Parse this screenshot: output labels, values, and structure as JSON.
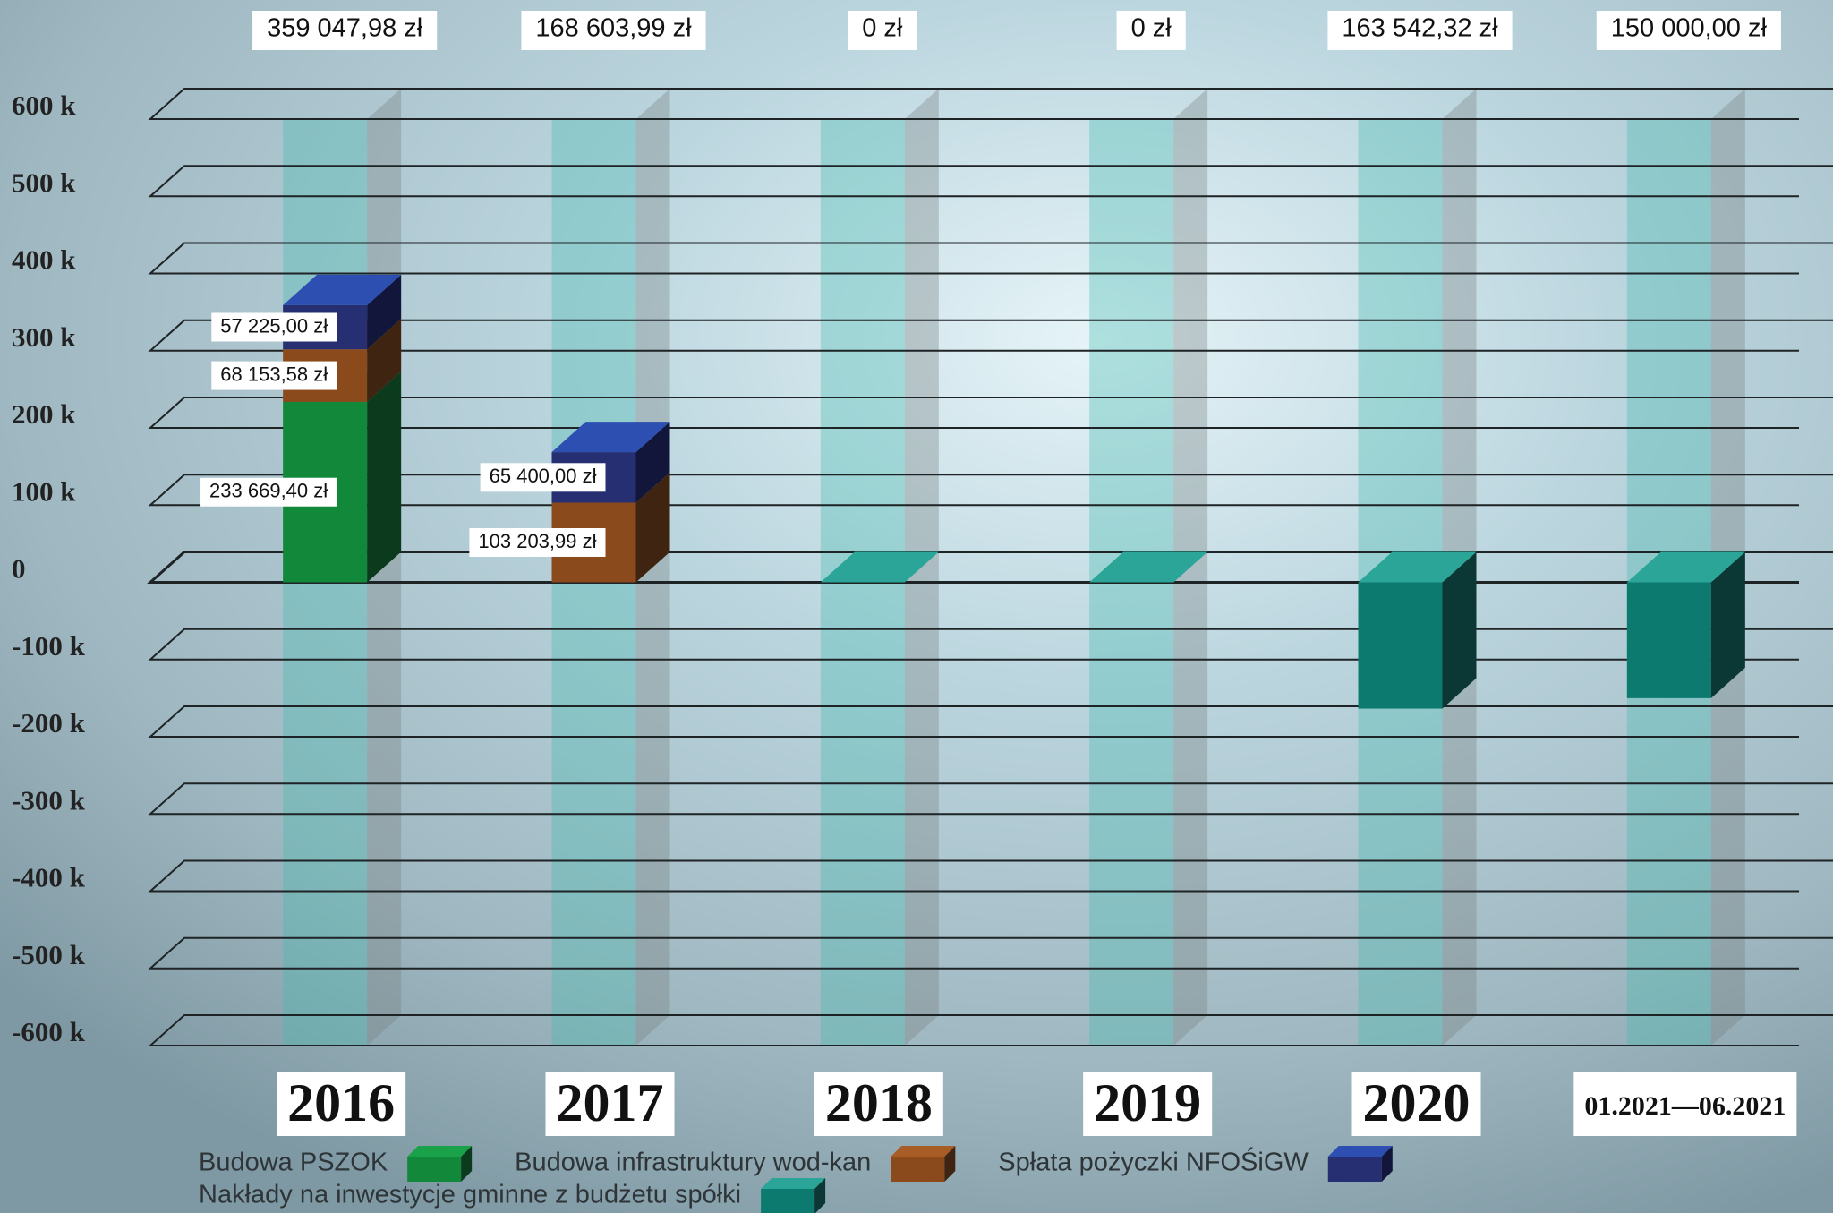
{
  "chart_data": {
    "type": "bar",
    "stacked": true,
    "categories": [
      "2016",
      "2017",
      "2018",
      "2019",
      "2020",
      "01.2021—06.2021"
    ],
    "total_labels": [
      "359 047,98 zł",
      "168 603,99 zł",
      "0 zł",
      "0 zł",
      "163 542,32 zł",
      "150 000,00 zł"
    ],
    "series": [
      {
        "name": "Budowa PSZOK",
        "color": "#11883a",
        "side_color": "#0b3a1d",
        "top_color": "#1aa24a",
        "values": [
          233669.4,
          null,
          null,
          null,
          null,
          null
        ],
        "value_labels": [
          "233 669,40 zł",
          null,
          null,
          null,
          null,
          null
        ]
      },
      {
        "name": "Budowa infrastruktury wod-kan",
        "color": "#8a4a1c",
        "side_color": "#3e2411",
        "top_color": "#a85c26",
        "values": [
          68153.58,
          103203.99,
          null,
          null,
          null,
          null
        ],
        "value_labels": [
          "68 153,58 zł",
          "103 203,99 zł",
          null,
          null,
          null,
          null
        ]
      },
      {
        "name": "Spłata pożyczki NFOŚiGW",
        "color": "#252f72",
        "side_color": "#11163a",
        "top_color": "#2d4fb2",
        "values": [
          57225.0,
          65400.0,
          null,
          null,
          null,
          null
        ],
        "value_labels": [
          "57 225,00 zł",
          "65 400,00 zł",
          null,
          null,
          null,
          null
        ]
      },
      {
        "name": "Nakłady na inwestycje gminne z budżetu spółki",
        "color": "#0d7a70",
        "side_color": "#0b3834",
        "top_color": "#2aa597",
        "values": [
          null,
          null,
          0,
          0,
          -163542.32,
          -150000.0
        ]
      }
    ],
    "ylim": [
      -600000,
      600000
    ],
    "yticks": [
      {
        "value": 600000,
        "label": "600 k"
      },
      {
        "value": 500000,
        "label": "500 k"
      },
      {
        "value": 400000,
        "label": "400 k"
      },
      {
        "value": 300000,
        "label": "300 k"
      },
      {
        "value": 200000,
        "label": "200 k"
      },
      {
        "value": 100000,
        "label": "100 k"
      },
      0,
      {
        "value": -100000,
        "label": "-100 k"
      },
      {
        "value": -200000,
        "label": "-200 k"
      },
      {
        "value": -300000,
        "label": "-300 k"
      },
      {
        "value": -400000,
        "label": "-400 k"
      },
      {
        "value": -500000,
        "label": "-500 k"
      },
      {
        "value": -600000,
        "label": "-600 k"
      }
    ],
    "grid": true,
    "legend": "bottom"
  }
}
